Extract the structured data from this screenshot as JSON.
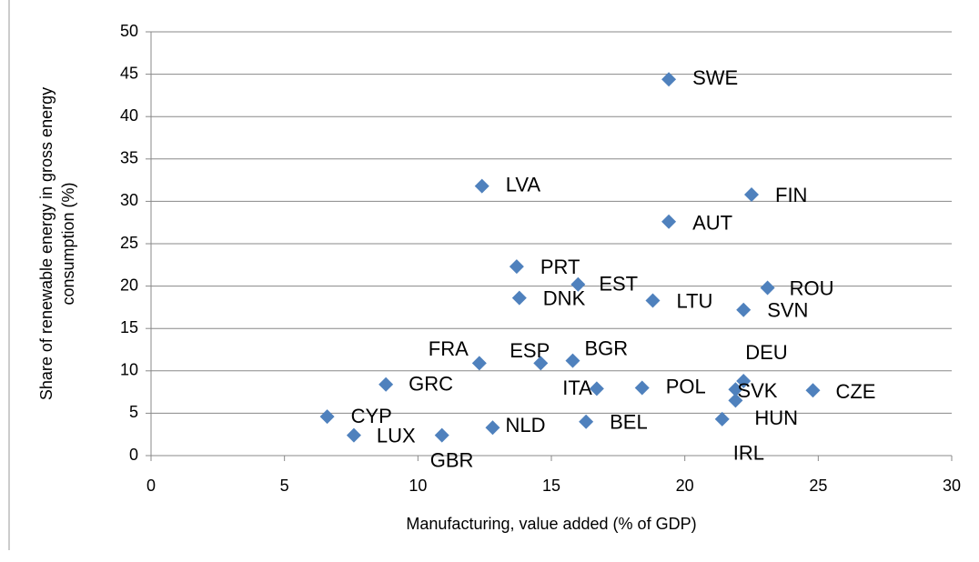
{
  "chart_data": {
    "type": "scatter",
    "x_label": "Manufacturing, value added (% of GDP)",
    "y_label": [
      "Share of renewable energy in gross energy",
      "consumption (%)"
    ],
    "xlim": [
      0,
      30
    ],
    "xticks": [
      0,
      5,
      10,
      15,
      20,
      25,
      30
    ],
    "ylim": [
      0,
      50
    ],
    "yticks": [
      0,
      5,
      10,
      15,
      20,
      25,
      30,
      35,
      40,
      45,
      50
    ],
    "grid": true,
    "series": [
      {
        "color": "#4f81bd",
        "labels": [
          "SWE",
          "LVA",
          "FIN",
          "AUT",
          "PRT",
          "EST",
          "DNK",
          "LTU",
          "ROU",
          "SVN",
          "FRA",
          "ESP",
          "BGR",
          "GRC",
          "ITA",
          "POL",
          "DEU",
          "SVK",
          "CZE",
          "HUN",
          "IRL",
          "CYP",
          "LUX",
          "GBR",
          "NLD",
          "BEL"
        ],
        "x": [
          19.4,
          12.4,
          22.5,
          19.4,
          13.7,
          16.0,
          13.8,
          18.8,
          23.1,
          22.2,
          12.3,
          14.6,
          15.8,
          8.8,
          16.7,
          18.4,
          22.2,
          21.9,
          24.8,
          21.9,
          21.4,
          6.6,
          7.6,
          10.9,
          12.8,
          16.3
        ],
        "values": [
          44.4,
          31.8,
          30.8,
          27.6,
          22.3,
          20.2,
          18.6,
          18.3,
          19.8,
          17.2,
          10.9,
          10.9,
          11.2,
          8.4,
          7.9,
          8.0,
          8.8,
          7.8,
          7.7,
          6.5,
          4.3,
          4.6,
          2.4,
          2.4,
          3.3,
          4.0
        ]
      }
    ]
  }
}
